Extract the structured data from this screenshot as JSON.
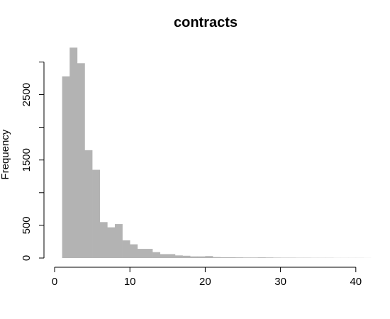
{
  "colors": {
    "bar_fill": "#b3b3b3",
    "axis": "#000000",
    "background": "#ffffff"
  },
  "chart_data": {
    "type": "bar",
    "title": "contracts",
    "xlabel": "",
    "ylabel": "Frequency",
    "bin_width": 1,
    "bin_starts": [
      1,
      2,
      3,
      4,
      5,
      6,
      7,
      8,
      9,
      10,
      11,
      12,
      13,
      14,
      15,
      16,
      17,
      18,
      19,
      20,
      21,
      22,
      23,
      24,
      25,
      26,
      27,
      28,
      29,
      30,
      31,
      32,
      33,
      34,
      35,
      36,
      37,
      38,
      39,
      40,
      41
    ],
    "values": [
      2780,
      3220,
      2980,
      1650,
      1350,
      550,
      470,
      520,
      270,
      210,
      140,
      140,
      90,
      60,
      60,
      40,
      35,
      25,
      25,
      30,
      15,
      12,
      12,
      10,
      8,
      8,
      10,
      8,
      6,
      5,
      5,
      4,
      4,
      3,
      3,
      3,
      2,
      2,
      2,
      2,
      1
    ],
    "xlim": [
      0,
      41
    ],
    "ylim": [
      0,
      3250
    ],
    "x_ticks": [
      0,
      10,
      20,
      30,
      40
    ],
    "x_tick_labels": [
      "0",
      "10",
      "20",
      "30",
      "40"
    ],
    "y_ticks": [
      0,
      500,
      1000,
      1500,
      2000,
      2500,
      3000
    ],
    "y_tick_labels": [
      "0",
      "500",
      "",
      "1500",
      "",
      "2500",
      ""
    ],
    "grid": false,
    "legend": "none"
  }
}
